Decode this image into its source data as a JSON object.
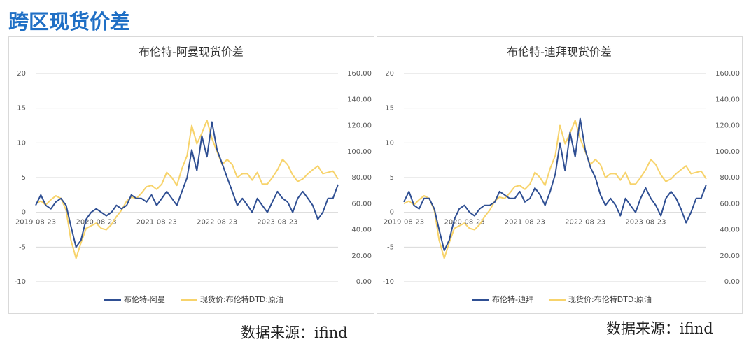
{
  "page_title": "跨区现货价差",
  "source_notes": [
    "数据来源：ifind",
    "数据来源：ifind"
  ],
  "chart_data": [
    {
      "type": "line",
      "title": "布伦特-阿曼现货价差",
      "x": [
        "2019-08-23",
        "2019-09-23",
        "2019-10-23",
        "2019-11-23",
        "2019-12-23",
        "2020-01-23",
        "2020-02-23",
        "2020-03-23",
        "2020-04-23",
        "2020-05-23",
        "2020-06-23",
        "2020-07-23",
        "2020-08-23",
        "2020-09-23",
        "2020-10-23",
        "2020-11-23",
        "2020-12-23",
        "2021-01-23",
        "2021-02-23",
        "2021-03-23",
        "2021-04-23",
        "2021-05-23",
        "2021-06-23",
        "2021-07-23",
        "2021-08-23",
        "2021-09-23",
        "2021-10-23",
        "2021-11-23",
        "2021-12-23",
        "2022-01-23",
        "2022-02-23",
        "2022-03-23",
        "2022-04-23",
        "2022-05-23",
        "2022-06-23",
        "2022-07-23",
        "2022-08-23",
        "2022-09-23",
        "2022-10-23",
        "2022-11-23",
        "2022-12-23",
        "2023-01-23",
        "2023-02-23",
        "2023-03-23",
        "2023-04-23",
        "2023-05-23",
        "2023-06-23",
        "2023-07-23",
        "2023-08-23",
        "2023-09-23",
        "2023-10-23",
        "2023-11-23",
        "2023-12-23",
        "2024-01-23",
        "2024-02-23",
        "2024-03-23",
        "2024-04-23",
        "2024-05-23",
        "2024-06-23",
        "2024-07-23",
        "2024-08-23"
      ],
      "xlim": [
        "2019-08-23",
        "2024-08-23"
      ],
      "xticks": [
        "2019-08-23",
        "2020-08-23",
        "2021-08-23",
        "2022-08-23",
        "2023-08-23"
      ],
      "ylim": [
        -10,
        20
      ],
      "yticks": [
        -10,
        -5,
        0,
        5,
        10,
        15,
        20
      ],
      "y2lim": [
        0,
        160
      ],
      "y2ticks": [
        {
          "value": 0,
          "label": "0.00"
        },
        {
          "value": 20,
          "label": "20.00"
        },
        {
          "value": 40,
          "label": "40.00"
        },
        {
          "value": 60,
          "label": "60.00"
        },
        {
          "value": 80,
          "label": "80.00"
        },
        {
          "value": 100,
          "label": "100.00"
        },
        {
          "value": 120,
          "label": "120.00"
        },
        {
          "value": 140,
          "label": "140.00"
        },
        {
          "value": 160,
          "label": "160.00"
        }
      ],
      "grid": true,
      "series": [
        {
          "name": "布伦特-阿曼",
          "color": "#2f4f93",
          "values": [
            1,
            2.5,
            1,
            0.5,
            1.5,
            2,
            1,
            -2,
            -5,
            -4,
            -1,
            0,
            0.5,
            0,
            -0.5,
            0,
            1,
            0.5,
            1,
            2.5,
            2,
            2,
            1.5,
            2.5,
            1,
            2,
            3,
            2,
            1,
            3,
            5,
            9,
            6,
            11,
            8,
            13,
            9,
            7,
            5,
            3,
            1,
            2,
            1,
            0,
            2,
            1,
            0,
            1.5,
            3,
            2,
            1.5,
            0,
            2,
            3,
            2,
            1,
            -1,
            0,
            2,
            2,
            4
          ]
        },
        {
          "name": "现货价:布伦特DTD:原油",
          "color": "#f7d36b",
          "axis": "y2",
          "values": [
            60,
            62,
            59,
            63,
            66,
            64,
            55,
            32,
            18,
            30,
            41,
            43,
            45,
            41,
            40,
            44,
            50,
            55,
            62,
            65,
            64,
            68,
            73,
            74,
            71,
            75,
            84,
            80,
            74,
            87,
            97,
            120,
            106,
            114,
            124,
            110,
            100,
            90,
            94,
            90,
            80,
            83,
            83,
            78,
            84,
            75,
            75,
            80,
            86,
            94,
            90,
            82,
            77,
            79,
            83,
            86,
            89,
            83,
            84,
            85,
            79
          ]
        }
      ]
    },
    {
      "type": "line",
      "title": "布伦特-迪拜现货价差",
      "x": [
        "2019-08-23",
        "2019-09-23",
        "2019-10-23",
        "2019-11-23",
        "2019-12-23",
        "2020-01-23",
        "2020-02-23",
        "2020-03-23",
        "2020-04-23",
        "2020-05-23",
        "2020-06-23",
        "2020-07-23",
        "2020-08-23",
        "2020-09-23",
        "2020-10-23",
        "2020-11-23",
        "2020-12-23",
        "2021-01-23",
        "2021-02-23",
        "2021-03-23",
        "2021-04-23",
        "2021-05-23",
        "2021-06-23",
        "2021-07-23",
        "2021-08-23",
        "2021-09-23",
        "2021-10-23",
        "2021-11-23",
        "2021-12-23",
        "2022-01-23",
        "2022-02-23",
        "2022-03-23",
        "2022-04-23",
        "2022-05-23",
        "2022-06-23",
        "2022-07-23",
        "2022-08-23",
        "2022-09-23",
        "2022-10-23",
        "2022-11-23",
        "2022-12-23",
        "2023-01-23",
        "2023-02-23",
        "2023-03-23",
        "2023-04-23",
        "2023-05-23",
        "2023-06-23",
        "2023-07-23",
        "2023-08-23",
        "2023-09-23",
        "2023-10-23",
        "2023-11-23",
        "2023-12-23",
        "2024-01-23",
        "2024-02-23",
        "2024-03-23",
        "2024-04-23",
        "2024-05-23",
        "2024-06-23",
        "2024-07-23",
        "2024-08-23"
      ],
      "xlim": [
        "2019-08-23",
        "2024-08-23"
      ],
      "xticks": [
        "2019-08-23",
        "2020-08-23",
        "2021-08-23",
        "2022-08-23",
        "2023-08-23"
      ],
      "ylim": [
        -10,
        20
      ],
      "yticks": [
        -10,
        -5,
        0,
        5,
        10,
        15,
        20
      ],
      "y2lim": [
        0,
        160
      ],
      "y2ticks": [
        {
          "value": 0,
          "label": "0.00"
        },
        {
          "value": 20,
          "label": "20.00"
        },
        {
          "value": 40,
          "label": "40.00"
        },
        {
          "value": 60,
          "label": "60.00"
        },
        {
          "value": 80,
          "label": "80.00"
        },
        {
          "value": 100,
          "label": "100.00"
        },
        {
          "value": 120,
          "label": "120.00"
        },
        {
          "value": 140,
          "label": "140.00"
        },
        {
          "value": 160,
          "label": "160.00"
        }
      ],
      "grid": true,
      "series": [
        {
          "name": "布伦特-迪拜",
          "color": "#2f4f93",
          "values": [
            1.5,
            3,
            1,
            0.5,
            2,
            2,
            0.5,
            -2.5,
            -5.5,
            -4,
            -1,
            0.5,
            1,
            0,
            -0.5,
            0.5,
            1,
            1,
            1.5,
            3,
            2.5,
            2,
            2,
            3,
            1.5,
            2,
            3.5,
            2.5,
            1,
            3,
            5.5,
            10,
            6,
            11.5,
            8,
            13.5,
            9,
            6.5,
            5,
            2.5,
            1,
            2,
            1,
            -0.5,
            2,
            1,
            0,
            2,
            3.5,
            2,
            1,
            -0.5,
            2,
            3,
            2,
            0.5,
            -1.5,
            0,
            2,
            2,
            4
          ]
        },
        {
          "name": "现货价:布伦特DTD:原油",
          "color": "#f7d36b",
          "axis": "y2",
          "values": [
            60,
            62,
            59,
            63,
            66,
            64,
            55,
            32,
            18,
            30,
            41,
            43,
            45,
            41,
            40,
            44,
            50,
            55,
            62,
            65,
            64,
            68,
            73,
            74,
            71,
            75,
            84,
            80,
            74,
            87,
            97,
            120,
            106,
            114,
            124,
            110,
            100,
            90,
            94,
            90,
            80,
            83,
            83,
            78,
            84,
            75,
            75,
            80,
            86,
            94,
            90,
            82,
            77,
            79,
            83,
            86,
            89,
            83,
            84,
            85,
            79
          ]
        }
      ]
    }
  ]
}
